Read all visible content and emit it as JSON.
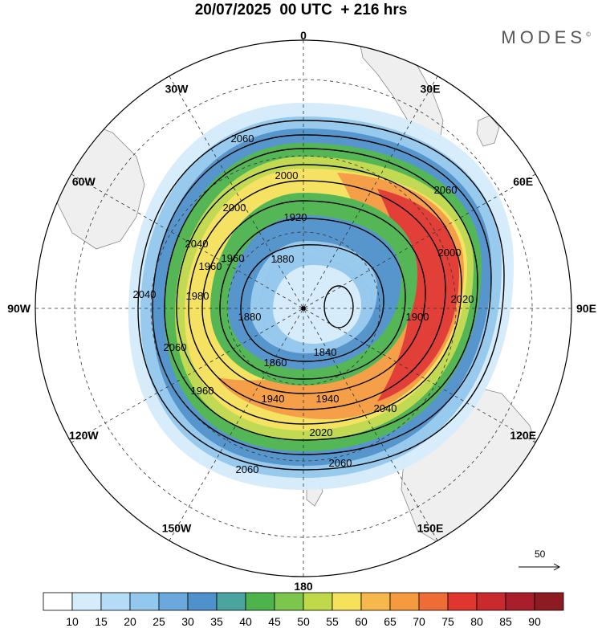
{
  "title": "20/07/2025  00 UTC  + 216 hrs",
  "brand": "MODES",
  "brand_mark": "©",
  "map": {
    "projection": "south-polar-stereographic",
    "longitude_labels": [
      {
        "text": "0",
        "lon": 0
      },
      {
        "text": "30E",
        "lon": 30
      },
      {
        "text": "60E",
        "lon": 60
      },
      {
        "text": "90E",
        "lon": 90
      },
      {
        "text": "120E",
        "lon": 120
      },
      {
        "text": "150E",
        "lon": 150
      },
      {
        "text": "180",
        "lon": 180
      },
      {
        "text": "150W",
        "lon": -150
      },
      {
        "text": "120W",
        "lon": -120
      },
      {
        "text": "90W",
        "lon": -90
      },
      {
        "text": "60W",
        "lon": -60
      },
      {
        "text": "30W",
        "lon": -30
      }
    ],
    "contour_labels": [
      "2060",
      "2000",
      "1920",
      "1880",
      "1840",
      "1860",
      "1900",
      "1960",
      "2020",
      "2040",
      "2060",
      "1940",
      "1940",
      "1960",
      "2000",
      "2040",
      "1980",
      "2020",
      "2060",
      "2060",
      "2060",
      "2040",
      "2000",
      "1880",
      "1960"
    ],
    "wind_reference": {
      "value": "50"
    },
    "colorbar": {
      "ticks": [
        "10",
        "15",
        "20",
        "25",
        "30",
        "35",
        "40",
        "45",
        "50",
        "55",
        "60",
        "65",
        "70",
        "75",
        "80",
        "85",
        "90"
      ],
      "colors": [
        "#ffffff",
        "#d5ecfb",
        "#b4dcf7",
        "#93c8ee",
        "#6ba9dd",
        "#4f91ca",
        "#4aa5a0",
        "#4cb34d",
        "#7dc64d",
        "#bfd94a",
        "#f5e15a",
        "#f6b84c",
        "#f59a3f",
        "#ee6d36",
        "#e1352f",
        "#c92a2e",
        "#a81e2a",
        "#8c1b22"
      ]
    },
    "colors": {
      "land": "#efefef",
      "coast": "#8a8a8a",
      "contour": "#000000",
      "vector": "#ffffff"
    }
  }
}
